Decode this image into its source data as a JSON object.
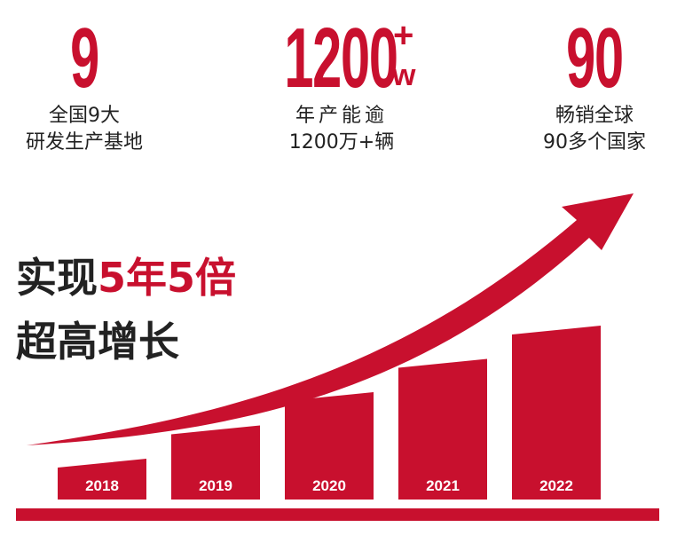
{
  "stats": [
    {
      "value": "9",
      "line1": "全国9大",
      "line2": "研发生产基地"
    },
    {
      "value": "1200",
      "sup_plus": "+",
      "sup_unit": "w",
      "line1": "年产能逾",
      "line2": "1200万+辆"
    },
    {
      "value": "90",
      "line1": "畅销全球",
      "line2": "90多个国家"
    }
  ],
  "slogan": {
    "line1_prefix": "实现",
    "line1_highlight": "5年5倍",
    "line2": "超高增长"
  },
  "colors": {
    "accent": "#c8102e",
    "text": "#222222"
  },
  "chart_data": {
    "type": "bar",
    "categories": [
      "2018",
      "2019",
      "2020",
      "2021",
      "2022"
    ],
    "values": [
      1,
      2,
      3,
      4,
      5
    ],
    "title": "",
    "xlabel": "",
    "ylabel": ""
  }
}
